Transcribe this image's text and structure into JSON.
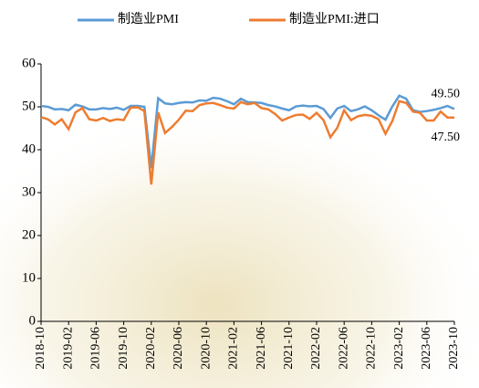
{
  "chart_data": {
    "type": "line",
    "categories": [
      "2018-10",
      null,
      null,
      null,
      "2019-02",
      null,
      null,
      null,
      "2019-06",
      null,
      null,
      null,
      "2019-10",
      null,
      null,
      null,
      "2020-02",
      null,
      null,
      null,
      "2020-06",
      null,
      null,
      null,
      "2020-10",
      null,
      null,
      null,
      "2021-02",
      null,
      null,
      null,
      "2021-06",
      null,
      null,
      null,
      "2021-10",
      null,
      null,
      null,
      "2022-02",
      null,
      null,
      null,
      "2022-06",
      null,
      null,
      null,
      "2022-10",
      null,
      null,
      null,
      "2023-02",
      null,
      null,
      null,
      "2023-06",
      null,
      null,
      null,
      "2023-10"
    ],
    "series": [
      {
        "name": "制造业PMI",
        "color": "#5b9bd5",
        "values": [
          50.2,
          50.0,
          49.4,
          49.5,
          49.2,
          50.5,
          50.1,
          49.4,
          49.4,
          49.7,
          49.5,
          49.8,
          49.3,
          50.2,
          50.2,
          50.0,
          35.7,
          52.0,
          50.8,
          50.6,
          50.9,
          51.1,
          51.0,
          51.5,
          51.4,
          52.1,
          51.9,
          51.3,
          50.6,
          51.9,
          51.1,
          51.0,
          50.9,
          50.4,
          50.1,
          49.6,
          49.2,
          50.1,
          50.3,
          50.1,
          50.2,
          49.5,
          47.4,
          49.6,
          50.2,
          49.0,
          49.4,
          50.1,
          49.2,
          48.0,
          47.0,
          50.1,
          52.6,
          51.9,
          49.2,
          48.8,
          49.0,
          49.3,
          49.7,
          50.2,
          49.5
        ],
        "value_labels": [
          null,
          null,
          null,
          null,
          null,
          null,
          null,
          null,
          null,
          null,
          null,
          null,
          null,
          null,
          null,
          null,
          null,
          null,
          null,
          null,
          null,
          null,
          null,
          null,
          null,
          null,
          null,
          null,
          null,
          null,
          null,
          null,
          null,
          null,
          null,
          null,
          null,
          null,
          null,
          null,
          null,
          null,
          null,
          null,
          null,
          null,
          null,
          null,
          null,
          null,
          null,
          null,
          null,
          null,
          null,
          null,
          null,
          null,
          null,
          null,
          "49.50"
        ]
      },
      {
        "name": "制造业PMI:进口",
        "color": "#ed7d31",
        "values": [
          47.6,
          47.1,
          45.9,
          47.1,
          44.8,
          48.7,
          49.7,
          47.1,
          46.8,
          47.4,
          46.7,
          47.1,
          46.9,
          49.8,
          49.9,
          49.0,
          31.9,
          48.7,
          43.9,
          45.3,
          47.0,
          49.1,
          49.0,
          50.4,
          50.8,
          50.9,
          50.4,
          49.8,
          49.6,
          51.1,
          50.6,
          50.9,
          49.7,
          49.4,
          48.3,
          46.8,
          47.5,
          48.1,
          48.2,
          47.2,
          48.6,
          46.9,
          42.9,
          45.1,
          49.2,
          46.9,
          47.8,
          48.1,
          47.9,
          47.1,
          43.7,
          46.7,
          51.3,
          50.9,
          48.9,
          48.6,
          46.8,
          46.8,
          48.9,
          47.5,
          47.5
        ],
        "value_labels": [
          null,
          null,
          null,
          null,
          null,
          null,
          null,
          null,
          null,
          null,
          null,
          null,
          null,
          null,
          null,
          null,
          null,
          null,
          null,
          null,
          null,
          null,
          null,
          null,
          null,
          null,
          null,
          null,
          null,
          null,
          null,
          null,
          null,
          null,
          null,
          null,
          null,
          null,
          null,
          null,
          null,
          null,
          null,
          null,
          null,
          null,
          null,
          null,
          null,
          null,
          null,
          null,
          null,
          null,
          null,
          null,
          null,
          null,
          null,
          null,
          "47.50"
        ]
      }
    ],
    "ylim": [
      0,
      60
    ],
    "yticks": [
      0,
      10,
      20,
      30,
      40,
      50,
      60
    ],
    "grid": false,
    "legend": "top"
  }
}
